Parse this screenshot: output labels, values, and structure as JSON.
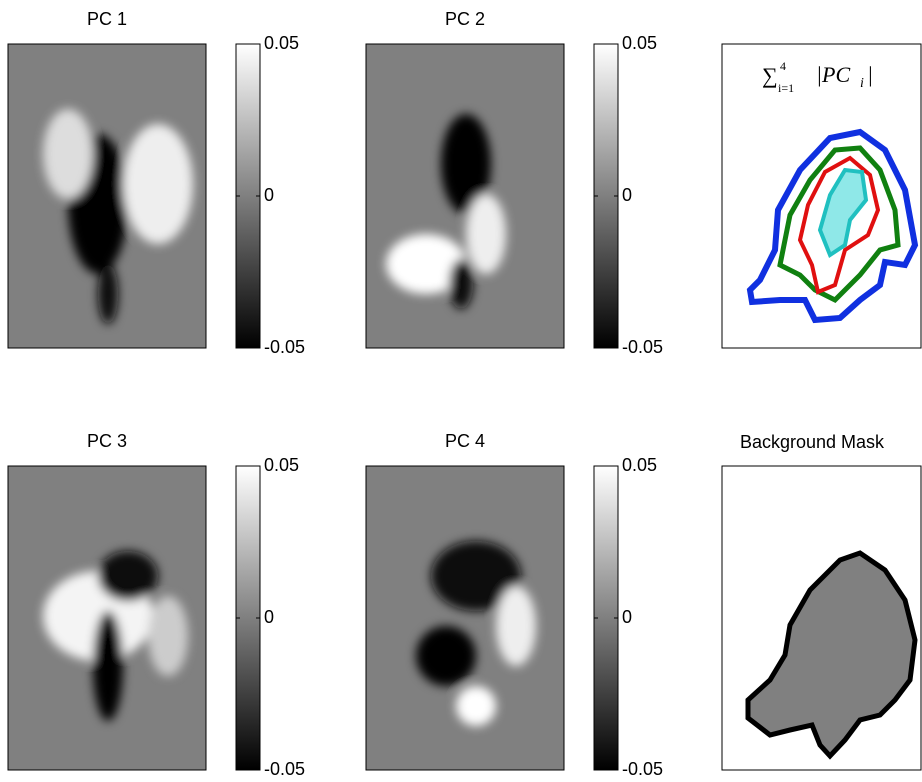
{
  "panels": [
    {
      "title": "PC 1",
      "colorbar": {
        "lim": [
          -0.05,
          0.05
        ],
        "ticks": [
          -0.05,
          0,
          0.05
        ]
      }
    },
    {
      "title": "PC 2",
      "colorbar": {
        "lim": [
          -0.05,
          0.05
        ],
        "ticks": [
          -0.05,
          0,
          0.05
        ]
      }
    },
    {
      "title": "PC 3",
      "colorbar": {
        "lim": [
          -0.05,
          0.05
        ],
        "ticks": [
          -0.05,
          0,
          0.05
        ]
      }
    },
    {
      "title": "PC 4",
      "colorbar": {
        "lim": [
          -0.05,
          0.05
        ],
        "ticks": [
          -0.05,
          0,
          0.05
        ]
      }
    }
  ],
  "sum_panel": {
    "symbol": "∑",
    "lower": "i=1",
    "upper": "4",
    "body": "|PC",
    "index": "i",
    "close": "|"
  },
  "mask_panel": {
    "title": "Background Mask"
  }
}
